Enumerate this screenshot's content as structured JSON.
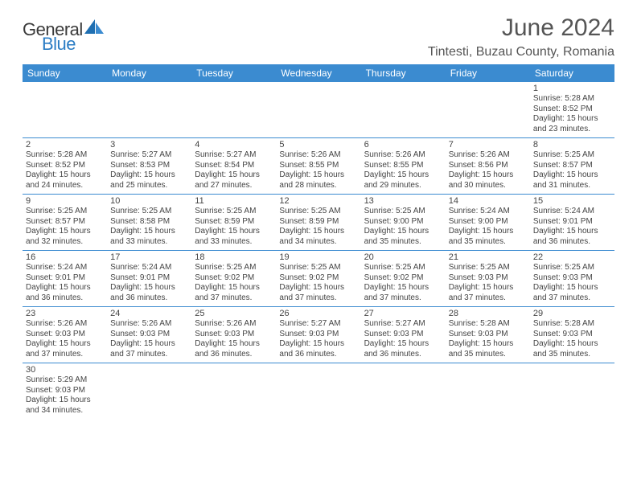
{
  "logo": {
    "text_general": "General",
    "text_blue": "Blue"
  },
  "title": "June 2024",
  "location": "Tintesti, Buzau County, Romania",
  "colors": {
    "header_bg": "#3b8bd0",
    "header_text": "#ffffff",
    "row_border": "#3b8bd0",
    "logo_blue": "#2a7cc4",
    "logo_gray": "#3a3a3a"
  },
  "dayHeaders": [
    "Sunday",
    "Monday",
    "Tuesday",
    "Wednesday",
    "Thursday",
    "Friday",
    "Saturday"
  ],
  "weeks": [
    [
      null,
      null,
      null,
      null,
      null,
      null,
      {
        "n": "1",
        "sunrise": "5:28 AM",
        "sunset": "8:52 PM",
        "dl": "15 hours and 23 minutes."
      }
    ],
    [
      {
        "n": "2",
        "sunrise": "5:28 AM",
        "sunset": "8:52 PM",
        "dl": "15 hours and 24 minutes."
      },
      {
        "n": "3",
        "sunrise": "5:27 AM",
        "sunset": "8:53 PM",
        "dl": "15 hours and 25 minutes."
      },
      {
        "n": "4",
        "sunrise": "5:27 AM",
        "sunset": "8:54 PM",
        "dl": "15 hours and 27 minutes."
      },
      {
        "n": "5",
        "sunrise": "5:26 AM",
        "sunset": "8:55 PM",
        "dl": "15 hours and 28 minutes."
      },
      {
        "n": "6",
        "sunrise": "5:26 AM",
        "sunset": "8:55 PM",
        "dl": "15 hours and 29 minutes."
      },
      {
        "n": "7",
        "sunrise": "5:26 AM",
        "sunset": "8:56 PM",
        "dl": "15 hours and 30 minutes."
      },
      {
        "n": "8",
        "sunrise": "5:25 AM",
        "sunset": "8:57 PM",
        "dl": "15 hours and 31 minutes."
      }
    ],
    [
      {
        "n": "9",
        "sunrise": "5:25 AM",
        "sunset": "8:57 PM",
        "dl": "15 hours and 32 minutes."
      },
      {
        "n": "10",
        "sunrise": "5:25 AM",
        "sunset": "8:58 PM",
        "dl": "15 hours and 33 minutes."
      },
      {
        "n": "11",
        "sunrise": "5:25 AM",
        "sunset": "8:59 PM",
        "dl": "15 hours and 33 minutes."
      },
      {
        "n": "12",
        "sunrise": "5:25 AM",
        "sunset": "8:59 PM",
        "dl": "15 hours and 34 minutes."
      },
      {
        "n": "13",
        "sunrise": "5:25 AM",
        "sunset": "9:00 PM",
        "dl": "15 hours and 35 minutes."
      },
      {
        "n": "14",
        "sunrise": "5:24 AM",
        "sunset": "9:00 PM",
        "dl": "15 hours and 35 minutes."
      },
      {
        "n": "15",
        "sunrise": "5:24 AM",
        "sunset": "9:01 PM",
        "dl": "15 hours and 36 minutes."
      }
    ],
    [
      {
        "n": "16",
        "sunrise": "5:24 AM",
        "sunset": "9:01 PM",
        "dl": "15 hours and 36 minutes."
      },
      {
        "n": "17",
        "sunrise": "5:24 AM",
        "sunset": "9:01 PM",
        "dl": "15 hours and 36 minutes."
      },
      {
        "n": "18",
        "sunrise": "5:25 AM",
        "sunset": "9:02 PM",
        "dl": "15 hours and 37 minutes."
      },
      {
        "n": "19",
        "sunrise": "5:25 AM",
        "sunset": "9:02 PM",
        "dl": "15 hours and 37 minutes."
      },
      {
        "n": "20",
        "sunrise": "5:25 AM",
        "sunset": "9:02 PM",
        "dl": "15 hours and 37 minutes."
      },
      {
        "n": "21",
        "sunrise": "5:25 AM",
        "sunset": "9:03 PM",
        "dl": "15 hours and 37 minutes."
      },
      {
        "n": "22",
        "sunrise": "5:25 AM",
        "sunset": "9:03 PM",
        "dl": "15 hours and 37 minutes."
      }
    ],
    [
      {
        "n": "23",
        "sunrise": "5:26 AM",
        "sunset": "9:03 PM",
        "dl": "15 hours and 37 minutes."
      },
      {
        "n": "24",
        "sunrise": "5:26 AM",
        "sunset": "9:03 PM",
        "dl": "15 hours and 37 minutes."
      },
      {
        "n": "25",
        "sunrise": "5:26 AM",
        "sunset": "9:03 PM",
        "dl": "15 hours and 36 minutes."
      },
      {
        "n": "26",
        "sunrise": "5:27 AM",
        "sunset": "9:03 PM",
        "dl": "15 hours and 36 minutes."
      },
      {
        "n": "27",
        "sunrise": "5:27 AM",
        "sunset": "9:03 PM",
        "dl": "15 hours and 36 minutes."
      },
      {
        "n": "28",
        "sunrise": "5:28 AM",
        "sunset": "9:03 PM",
        "dl": "15 hours and 35 minutes."
      },
      {
        "n": "29",
        "sunrise": "5:28 AM",
        "sunset": "9:03 PM",
        "dl": "15 hours and 35 minutes."
      }
    ],
    [
      {
        "n": "30",
        "sunrise": "5:29 AM",
        "sunset": "9:03 PM",
        "dl": "15 hours and 34 minutes."
      },
      null,
      null,
      null,
      null,
      null,
      null
    ]
  ],
  "labels": {
    "sunrise_prefix": "Sunrise: ",
    "sunset_prefix": "Sunset: ",
    "daylight_prefix": "Daylight: "
  }
}
